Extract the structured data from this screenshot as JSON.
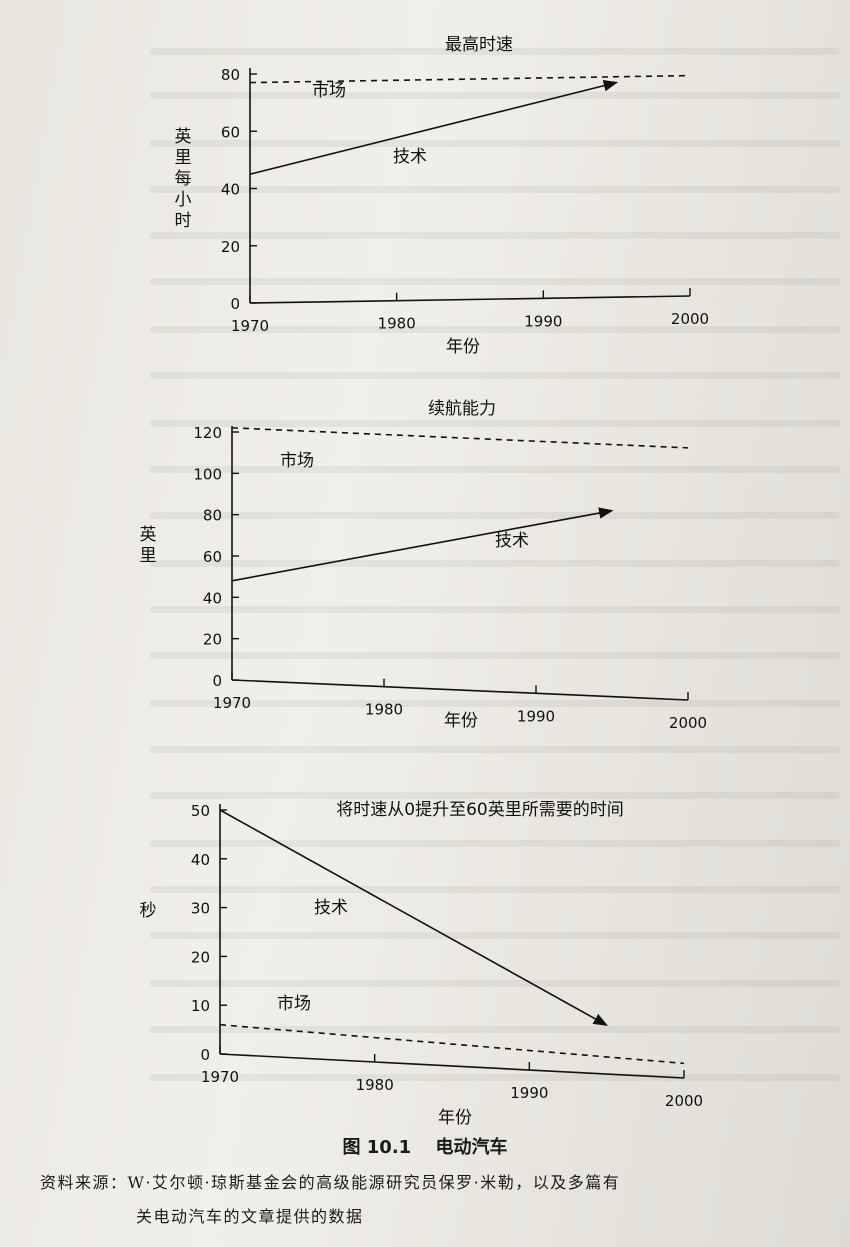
{
  "chart_data": [
    {
      "type": "line",
      "title": "最高时速",
      "xlabel": "年份",
      "ylabel": "英里每小时",
      "xlim": [
        1970,
        2000
      ],
      "ylim": [
        0,
        80
      ],
      "xticks": [
        "1970",
        "1980",
        "1990",
        "2000"
      ],
      "yticks": [
        "0",
        "20",
        "40",
        "60",
        "80"
      ],
      "series": [
        {
          "name": "市场",
          "style": "dashed",
          "x": [
            1970,
            2000
          ],
          "y": [
            77,
            77
          ]
        },
        {
          "name": "技术",
          "style": "solid-arrow",
          "x": [
            1970,
            1995
          ],
          "y": [
            45,
            75
          ]
        }
      ]
    },
    {
      "type": "line",
      "title": "续航能力",
      "xlabel": "年份",
      "ylabel": "英里",
      "xlim": [
        1970,
        2000
      ],
      "ylim": [
        0,
        120
      ],
      "xticks": [
        "1970",
        "1980",
        "1990",
        "2000"
      ],
      "yticks": [
        "0",
        "20",
        "40",
        "60",
        "80",
        "100",
        "120"
      ],
      "series": [
        {
          "name": "市场",
          "style": "dashed",
          "x": [
            1970,
            2000
          ],
          "y": [
            122,
            122
          ]
        },
        {
          "name": "技术",
          "style": "solid-arrow",
          "x": [
            1970,
            1995
          ],
          "y": [
            48,
            90
          ]
        }
      ]
    },
    {
      "type": "line",
      "title": "将时速从0提升至60英里所需要的时间",
      "xlabel": "年份",
      "ylabel": "秒",
      "xlim": [
        1970,
        2000
      ],
      "ylim": [
        0,
        50
      ],
      "xticks": [
        "1970",
        "1980",
        "1990",
        "2000"
      ],
      "yticks": [
        "0",
        "10",
        "20",
        "30",
        "40",
        "50"
      ],
      "series": [
        {
          "name": "市场",
          "style": "dashed",
          "x": [
            1970,
            2000
          ],
          "y": [
            6,
            3
          ]
        },
        {
          "name": "技术",
          "style": "solid-arrow",
          "x": [
            1970,
            1995
          ],
          "y": [
            50,
            10
          ]
        }
      ]
    }
  ],
  "caption": {
    "number": "图 10.1",
    "title": "电动汽车"
  },
  "source": {
    "line1": "资料来源：W·艾尔顿·琼斯基金会的高级能源研究员保罗·米勒，以及多篇有",
    "line2": "关电动汽车的文章提供的数据"
  },
  "colors": {
    "ink": "#111111",
    "paper": "#ebe8e2"
  }
}
